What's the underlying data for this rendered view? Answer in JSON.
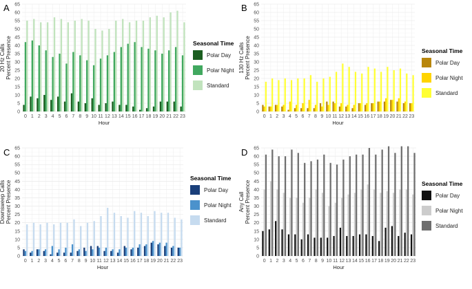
{
  "chart_data": [
    {
      "type": "bar",
      "panel_label": "A",
      "ylabel_line1": "20 Hz Calls",
      "ylabel_line2": "Percent Presence",
      "xlabel": "Hour",
      "ylim": [
        0,
        65
      ],
      "yticks": [
        0,
        5,
        10,
        15,
        20,
        25,
        30,
        35,
        40,
        45,
        50,
        55,
        60,
        65
      ],
      "categories": [
        "0",
        "1",
        "2",
        "3",
        "4",
        "5",
        "6",
        "7",
        "8",
        "9",
        "10",
        "11",
        "12",
        "13",
        "14",
        "15",
        "16",
        "17",
        "18",
        "19",
        "20",
        "21",
        "22",
        "23"
      ],
      "grid": true,
      "legend_title": "Seasonal Time",
      "legend_position": "right",
      "series": [
        {
          "name": "Polar Day",
          "color": "#1b5e20",
          "values": [
            4,
            9,
            8,
            10,
            7,
            9,
            6,
            11,
            6,
            5,
            8,
            4,
            5,
            6,
            4,
            4,
            3,
            1,
            2,
            3,
            6,
            6,
            6,
            3
          ]
        },
        {
          "name": "Polar Night",
          "color": "#41a85f",
          "values": [
            42,
            43,
            40,
            37,
            33,
            35,
            29,
            36,
            34,
            31,
            28,
            32,
            34,
            36,
            39,
            41,
            42,
            39,
            38,
            37,
            35,
            37,
            39,
            34
          ]
        },
        {
          "name": "Standard",
          "color": "#c1e3bd",
          "values": [
            55,
            56,
            54,
            54,
            57,
            56,
            54,
            55,
            56,
            55,
            50,
            49,
            50,
            55,
            56,
            54,
            55,
            55,
            57,
            58,
            57,
            60,
            61,
            54
          ]
        }
      ]
    },
    {
      "type": "bar",
      "panel_label": "B",
      "ylabel_line1": "130 Hz Calls",
      "ylabel_line2": "Percent Presence",
      "xlabel": "Hour",
      "ylim": [
        0,
        65
      ],
      "yticks": [
        0,
        5,
        10,
        15,
        20,
        25,
        30,
        35,
        40,
        45,
        50,
        55,
        60,
        65
      ],
      "categories": [
        "0",
        "1",
        "2",
        "3",
        "4",
        "5",
        "6",
        "7",
        "8",
        "9",
        "10",
        "11",
        "12",
        "13",
        "14",
        "15",
        "16",
        "17",
        "18",
        "19",
        "20",
        "21",
        "22",
        "23"
      ],
      "grid": true,
      "legend_title": "Seasonal Time",
      "legend_position": "right",
      "series": [
        {
          "name": "Polar Day",
          "color": "#b8860b",
          "values": [
            4,
            3,
            4,
            3,
            1,
            2,
            2,
            2,
            2,
            5,
            6,
            6,
            3,
            3,
            2,
            5,
            4,
            5,
            6,
            6,
            7,
            6,
            5,
            5
          ]
        },
        {
          "name": "Polar Night",
          "color": "#ffd400",
          "values": [
            3,
            3,
            4,
            4,
            6,
            4,
            5,
            7,
            4,
            3,
            4,
            5,
            5,
            4,
            4,
            5,
            5,
            5,
            6,
            8,
            7,
            8,
            6,
            5
          ]
        },
        {
          "name": "Standard",
          "color": "#ffff33",
          "values": [
            18,
            20,
            19,
            20,
            19,
            20,
            20,
            22,
            18,
            20,
            21,
            24,
            29,
            27,
            24,
            23,
            27,
            26,
            24,
            27,
            25,
            26,
            23,
            22
          ]
        }
      ]
    },
    {
      "type": "bar",
      "panel_label": "C",
      "ylabel_line1": "Downsweep Calls",
      "ylabel_line2": "Percent Presence",
      "xlabel": "Hour",
      "ylim": [
        0,
        65
      ],
      "yticks": [
        0,
        5,
        10,
        15,
        20,
        25,
        30,
        35,
        40,
        45,
        50,
        55,
        60,
        65
      ],
      "categories": [
        "0",
        "1",
        "2",
        "3",
        "4",
        "5",
        "6",
        "7",
        "8",
        "9",
        "10",
        "11",
        "12",
        "13",
        "14",
        "15",
        "16",
        "17",
        "18",
        "19",
        "20",
        "21",
        "22",
        "23"
      ],
      "grid": true,
      "legend_title": "Seasonal Time",
      "legend_position": "right",
      "series": [
        {
          "name": "Polar Day",
          "color": "#1a3f7a",
          "values": [
            4,
            2,
            4,
            3,
            1,
            2,
            2,
            2,
            3,
            5,
            6,
            6,
            3,
            3,
            2,
            6,
            4,
            5,
            6,
            8,
            7,
            6,
            5,
            5
          ]
        },
        {
          "name": "Polar Night",
          "color": "#4b92cc",
          "values": [
            3,
            3,
            4,
            4,
            6,
            4,
            5,
            7,
            4,
            3,
            4,
            5,
            5,
            4,
            4,
            5,
            5,
            7,
            7,
            9,
            8,
            8,
            6,
            5
          ]
        },
        {
          "name": "Standard",
          "color": "#c6dbef",
          "values": [
            19,
            20,
            19,
            20,
            19,
            20,
            20,
            22,
            18,
            20,
            21,
            24,
            29,
            26,
            24,
            23,
            27,
            26,
            24,
            27,
            26,
            26,
            23,
            22
          ]
        }
      ]
    },
    {
      "type": "bar",
      "panel_label": "D",
      "ylabel_line1": "Any Call",
      "ylabel_line2": "Percent Presence",
      "xlabel": "Hour",
      "ylim": [
        0,
        65
      ],
      "yticks": [
        0,
        5,
        10,
        15,
        20,
        25,
        30,
        35,
        40,
        45,
        50,
        55,
        60,
        65
      ],
      "categories": [
        "0",
        "1",
        "2",
        "3",
        "4",
        "5",
        "6",
        "7",
        "8",
        "9",
        "10",
        "11",
        "12",
        "13",
        "14",
        "15",
        "16",
        "17",
        "18",
        "19",
        "20",
        "21",
        "22",
        "23"
      ],
      "grid": true,
      "legend_title": "Seasonal Time",
      "legend_position": "right",
      "series": [
        {
          "name": "Polar Day",
          "color": "#111111",
          "values": [
            15,
            16,
            21,
            16,
            13,
            13,
            10,
            13,
            11,
            11,
            11,
            12,
            17,
            12,
            12,
            13,
            13,
            12,
            9,
            17,
            18,
            12,
            14,
            13
          ]
        },
        {
          "name": "Polar Night",
          "color": "#cccccc",
          "values": [
            40,
            45,
            40,
            38,
            35,
            35,
            32,
            35,
            40,
            38,
            30,
            32,
            35,
            37,
            38,
            40,
            43,
            40,
            38,
            39,
            38,
            40,
            40,
            37
          ]
        },
        {
          "name": "Standard",
          "color": "#6e6e6e",
          "values": [
            61,
            64,
            60,
            60,
            64,
            62,
            56,
            57,
            58,
            61,
            56,
            55,
            58,
            60,
            61,
            61,
            65,
            61,
            64,
            66,
            62,
            66,
            66,
            62
          ]
        }
      ]
    }
  ]
}
